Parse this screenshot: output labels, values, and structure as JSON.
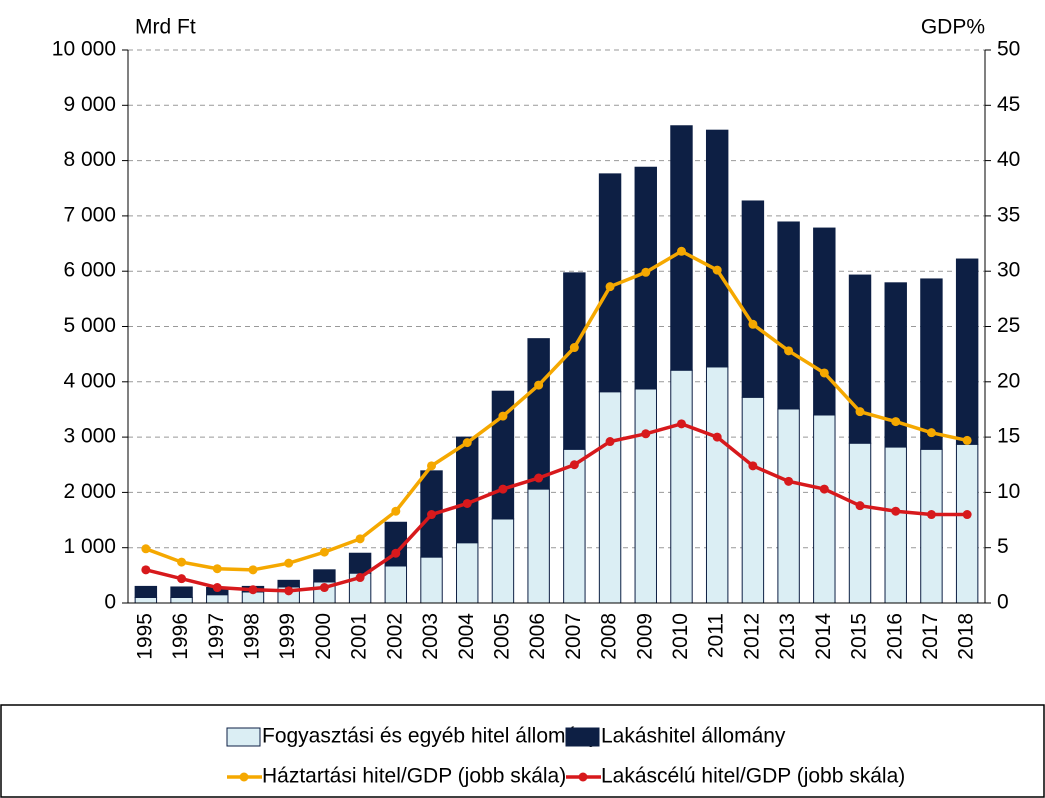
{
  "chart_data": {
    "type": "bar",
    "stacked": true,
    "y_label": "Mrd Ft",
    "y2_label": "GDP%",
    "categories": [
      "1995",
      "1996",
      "1997",
      "1998",
      "1999",
      "2000",
      "2001",
      "2002",
      "2003",
      "2004",
      "2005",
      "2006",
      "2007",
      "2008",
      "2009",
      "2010",
      "2011",
      "2012",
      "2013",
      "2014",
      "2015",
      "2016",
      "2017",
      "2018"
    ],
    "series": [
      {
        "name": "Fogyasztási és egyéb hitel állomány",
        "type": "bar",
        "color": "#dbeef4",
        "values": [
          100,
          100,
          150,
          200,
          290,
          380,
          540,
          670,
          830,
          1090,
          1520,
          2060,
          2780,
          3820,
          3870,
          4210,
          4270,
          3720,
          3510,
          3400,
          2890,
          2820,
          2780,
          2870
        ]
      },
      {
        "name": "Lakáshitel állomány",
        "type": "bar",
        "color": "#0d1f44",
        "values": [
          200,
          190,
          130,
          100,
          120,
          220,
          360,
          790,
          1560,
          1910,
          2310,
          2720,
          3190,
          3940,
          4010,
          4420,
          4280,
          3550,
          3380,
          3380,
          3040,
          2970,
          3080,
          3350
        ]
      },
      {
        "name": "Háztartási hitel/GDP (jobb skála)",
        "type": "line",
        "axis": "y2",
        "color": "#f5a800",
        "values": [
          4.9,
          3.7,
          3.1,
          3.0,
          3.6,
          4.6,
          5.8,
          8.3,
          12.4,
          14.5,
          16.9,
          19.7,
          23.1,
          28.6,
          29.9,
          31.8,
          30.1,
          25.2,
          22.8,
          20.8,
          17.3,
          16.4,
          15.4,
          14.7
        ]
      },
      {
        "name": "Lakáscélú hitel/GDP (jobb skála)",
        "type": "line",
        "axis": "y2",
        "color": "#d7191c",
        "values": [
          3.0,
          2.2,
          1.4,
          1.2,
          1.1,
          1.4,
          2.3,
          4.5,
          8.0,
          9.0,
          10.3,
          11.3,
          12.5,
          14.6,
          15.3,
          16.2,
          15.0,
          12.4,
          11.0,
          10.3,
          8.8,
          8.3,
          8.0,
          8.0
        ]
      }
    ],
    "ylim": [
      0,
      10000
    ],
    "yticks": [
      0,
      {
        "value": 1000,
        "label": "1 000"
      },
      {
        "value": 2000,
        "label": "2 000"
      },
      {
        "value": 3000,
        "label": "3 000"
      },
      {
        "value": 4000,
        "label": "4 000"
      },
      {
        "value": 5000,
        "label": "5 000"
      },
      {
        "value": 6000,
        "label": "6 000"
      },
      {
        "value": 7000,
        "label": "7 000"
      },
      {
        "value": 8000,
        "label": "8 000"
      },
      {
        "value": 9000,
        "label": "9 000"
      },
      {
        "value": 10000,
        "label": "10 000"
      }
    ],
    "y2lim": [
      0,
      50
    ],
    "y2ticks": [
      0,
      5,
      10,
      15,
      20,
      25,
      30,
      35,
      40,
      45,
      50
    ],
    "grid": true,
    "legend": "bottom"
  }
}
